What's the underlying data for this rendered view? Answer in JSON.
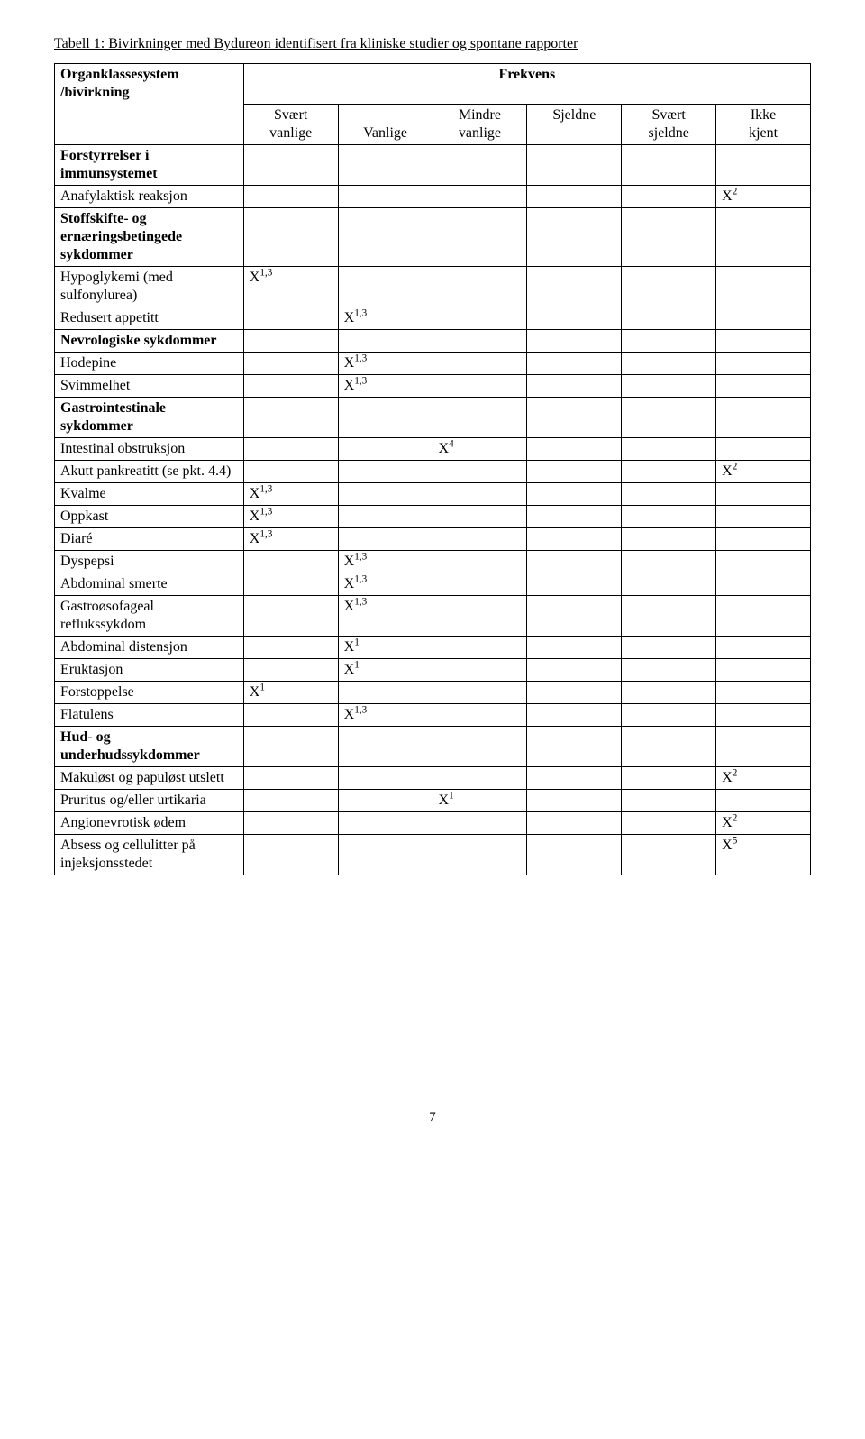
{
  "title": "Tabell 1: Bivirkninger med Bydureon identifisert fra kliniske studier og spontane rapporter",
  "headers": {
    "col1_line1": "Organklassesystem",
    "col1_line2": "/bivirkning",
    "frekvens": "Frekvens",
    "c2a": "Svært",
    "c2b": "vanlige",
    "c3": "Vanlige",
    "c4a": "Mindre",
    "c4b": "vanlige",
    "c5": "Sjeldne",
    "c6a": "Svært",
    "c6b": "sjeldne",
    "c7a": "Ikke",
    "c7b": "kjent"
  },
  "sections": {
    "immun": "Forstyrrelser i immunsystemet",
    "stoff": "Stoffskifte- og ernæringsbetingede sykdommer",
    "nevro": "Nevrologiske sykdommer",
    "gastro": "Gastrointestinale sykdommer",
    "hud": "Hud- og underhudssykdommer"
  },
  "rows": {
    "anafylaktisk": "Anafylaktisk reaksjon",
    "hypoglykemi": "Hypoglykemi (med sulfonylurea)",
    "redusert": "Redusert appetitt",
    "hodepine": "Hodepine",
    "svimmelhet": "Svimmelhet",
    "intestinal": "Intestinal obstruksjon",
    "akutt": "Akutt pankreatitt (se pkt. 4.4)",
    "kvalme": "Kvalme",
    "oppkast": "Oppkast",
    "diare": "Diaré",
    "dyspepsi": "Dyspepsi",
    "abdsmerte": "Abdominal smerte",
    "gastroosof": "Gastroøsofageal reflukssykdom",
    "abddist": "Abdominal distensjon",
    "eruktasjon": "Eruktasjon",
    "forstoppelse": "Forstoppelse",
    "flatulens": "Flatulens",
    "makulost": "Makuløst og papuløst utslett",
    "pruritus": "Pruritus og/eller urtikaria",
    "angio": "Angionevrotisk ødem",
    "absess": "Absess og cellulitter på injeksjonsstedet"
  },
  "marks": {
    "x13": "X",
    "x13_sup": "1,3",
    "x1": "X",
    "x1_sup": "1",
    "x2": "X",
    "x2_sup": "2",
    "x4": "X",
    "x4_sup": "4",
    "x5": "X",
    "x5_sup": "5"
  },
  "page": "7"
}
